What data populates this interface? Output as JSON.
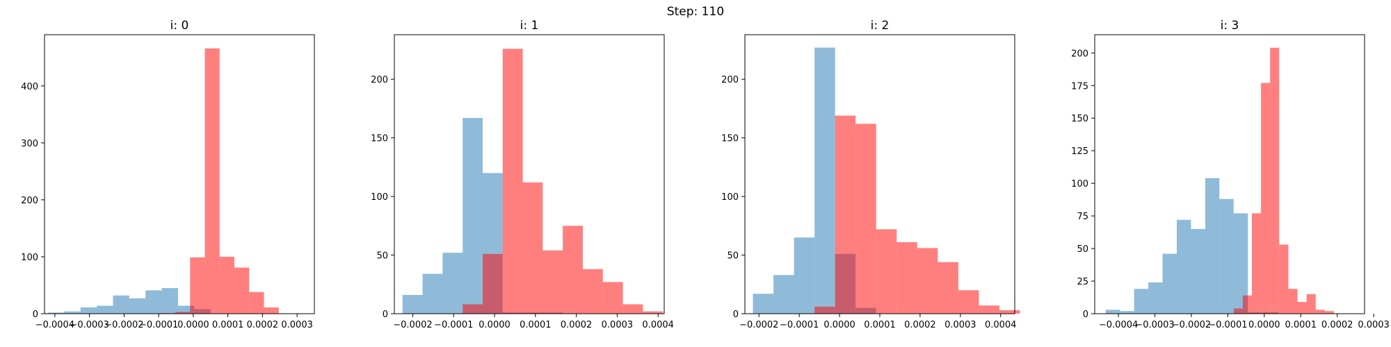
{
  "figure": {
    "suptitle": "Step: 110"
  },
  "style": {
    "series_colors": [
      "#1f77b4",
      "#ff0000"
    ],
    "series_opacity": [
      0.5,
      0.5
    ]
  },
  "chart_data": [
    {
      "type": "histogram",
      "title": "i: 0",
      "xlabel": "",
      "ylabel": "",
      "xlim": [
        -0.00043,
        0.00035
      ],
      "ylim": [
        0,
        490
      ],
      "xticks": [
        -0.0004,
        -0.0003,
        -0.0002,
        -0.0001,
        0.0,
        0.0001,
        0.0002,
        0.0003
      ],
      "xtick_labels": [
        "−0.0004",
        "−0.0003",
        "−0.0002",
        "−0.0001",
        "0.0000",
        "0.0001",
        "0.0002",
        "0.0003"
      ],
      "yticks": [
        0,
        100,
        200,
        300,
        400
      ],
      "ytick_labels": [
        "0",
        "100",
        "200",
        "300",
        "400"
      ],
      "series": [
        {
          "edges": [
            -0.00042,
            -0.000373,
            -0.000326,
            -0.000279,
            -0.000232,
            -0.000185,
            -0.000138,
            -9.1e-05,
            -4.4e-05,
            3e-06,
            5e-05
          ],
          "counts": [
            2,
            4,
            11,
            14,
            32,
            27,
            41,
            45,
            14,
            8
          ]
        },
        {
          "edges": [
            -9.46e-05,
            -5.19e-05,
            -9.2e-06,
            3.35e-05,
            7.62e-05,
            0.0001189,
            0.0001616,
            0.0002043,
            0.000247,
            0.0002897,
            0.0003324
          ],
          "counts": [
            1,
            3,
            99,
            466,
            100,
            81,
            38,
            11,
            0,
            0
          ]
        }
      ]
    },
    {
      "type": "histogram",
      "title": "i: 1",
      "xlabel": "",
      "ylabel": "",
      "xlim": [
        -0.000245,
        0.000415
      ],
      "ylim": [
        0,
        238
      ],
      "xticks": [
        -0.0002,
        -0.0001,
        0.0,
        0.0001,
        0.0002,
        0.0003,
        0.0004
      ],
      "xtick_labels": [
        "−0.0002",
        "−0.0001",
        "0.0000",
        "0.0001",
        "0.0002",
        "0.0003",
        "0.0004"
      ],
      "yticks": [
        0,
        50,
        100,
        150,
        200
      ],
      "ytick_labels": [
        "0",
        "50",
        "100",
        "150",
        "200"
      ],
      "series": [
        {
          "edges": [
            -0.000225,
            -0.000176,
            -0.000127,
            -7.8e-05,
            -2.9e-05,
            2e-05,
            6.9e-05,
            0.000118,
            0.000167
          ],
          "counts": [
            16,
            34,
            52,
            167,
            120,
            1,
            1,
            1
          ]
        },
        {
          "edges": [
            -7.8e-05,
            -2.9e-05,
            2e-05,
            6.9e-05,
            0.000118,
            0.000167,
            0.000216,
            0.000265,
            0.000314,
            0.000363,
            0.000412
          ],
          "counts": [
            8,
            51,
            226,
            112,
            54,
            75,
            38,
            27,
            8,
            2
          ]
        }
      ]
    },
    {
      "type": "histogram",
      "title": "i: 2",
      "xlabel": "",
      "ylabel": "",
      "xlim": [
        -0.000235,
        0.000435
      ],
      "ylim": [
        0,
        238
      ],
      "xticks": [
        -0.0002,
        -0.0001,
        0.0,
        0.0001,
        0.0002,
        0.0003,
        0.0004
      ],
      "xtick_labels": [
        "−0.0002",
        "−0.0001",
        "0.0000",
        "0.0001",
        "0.0002",
        "0.0003",
        "0.0004"
      ],
      "yticks": [
        0,
        50,
        100,
        150,
        200
      ],
      "ytick_labels": [
        "0",
        "50",
        "100",
        "150",
        "200"
      ],
      "series": [
        {
          "edges": [
            -0.000215,
            -0.000164,
            -0.000113,
            -6.2e-05,
            -1.1e-05,
            4e-05,
            9.1e-05
          ],
          "counts": [
            17,
            33,
            65,
            227,
            51,
            5
          ]
        },
        {
          "edges": [
            -6.2e-05,
            -1.1e-05,
            4e-05,
            9.1e-05,
            0.000142,
            0.000193,
            0.000244,
            0.000295,
            0.000346,
            0.000397,
            0.000448
          ],
          "counts": [
            6,
            169,
            162,
            72,
            61,
            56,
            44,
            20,
            7,
            3
          ]
        }
      ]
    },
    {
      "type": "histogram",
      "title": "i: 3",
      "xlabel": "",
      "ylabel": "",
      "xlim": [
        -0.000465,
        0.000275
      ],
      "ylim": [
        0,
        214
      ],
      "xticks": [
        -0.0004,
        -0.0003,
        -0.0002,
        -0.0001,
        0.0,
        0.0001,
        0.0002
      ],
      "xtick_labels": [
        "−0.0004",
        "−0.0003",
        "−0.0002",
        "−0.0001",
        "0.0000",
        "0.0001",
        "0.0002",
        "0.0003"
      ],
      "xtick_values_all": [
        -0.0004,
        -0.0003,
        -0.0002,
        -0.0001,
        0.0,
        0.0001,
        0.0002,
        0.0003
      ],
      "yticks": [
        0,
        25,
        50,
        75,
        100,
        125,
        150,
        175,
        200
      ],
      "ytick_labels": [
        "0",
        "25",
        "50",
        "75",
        "100",
        "125",
        "150",
        "175",
        "200"
      ],
      "series": [
        {
          "edges": [
            -0.000435,
            -0.000396,
            -0.000357,
            -0.000318,
            -0.000279,
            -0.00024,
            -0.000201,
            -0.000162,
            -0.000123,
            -8.4e-05,
            -4.5e-05,
            0.0,
            3.9e-05
          ],
          "counts": [
            3,
            2,
            19,
            24,
            46,
            72,
            65,
            104,
            88,
            77,
            1,
            1
          ]
        },
        {
          "edges": [
            -8.4e-05,
            -5.9e-05,
            -3.4e-05,
            -9e-06,
            1.6e-05,
            4.1e-05,
            6.6e-05,
            9.1e-05,
            0.000116,
            0.000141,
            0.000166,
            0.000191,
            0.000216,
            0.000241
          ],
          "counts": [
            4,
            14,
            77,
            177,
            204,
            53,
            19,
            9,
            15,
            3,
            2,
            0,
            0
          ]
        }
      ]
    }
  ]
}
